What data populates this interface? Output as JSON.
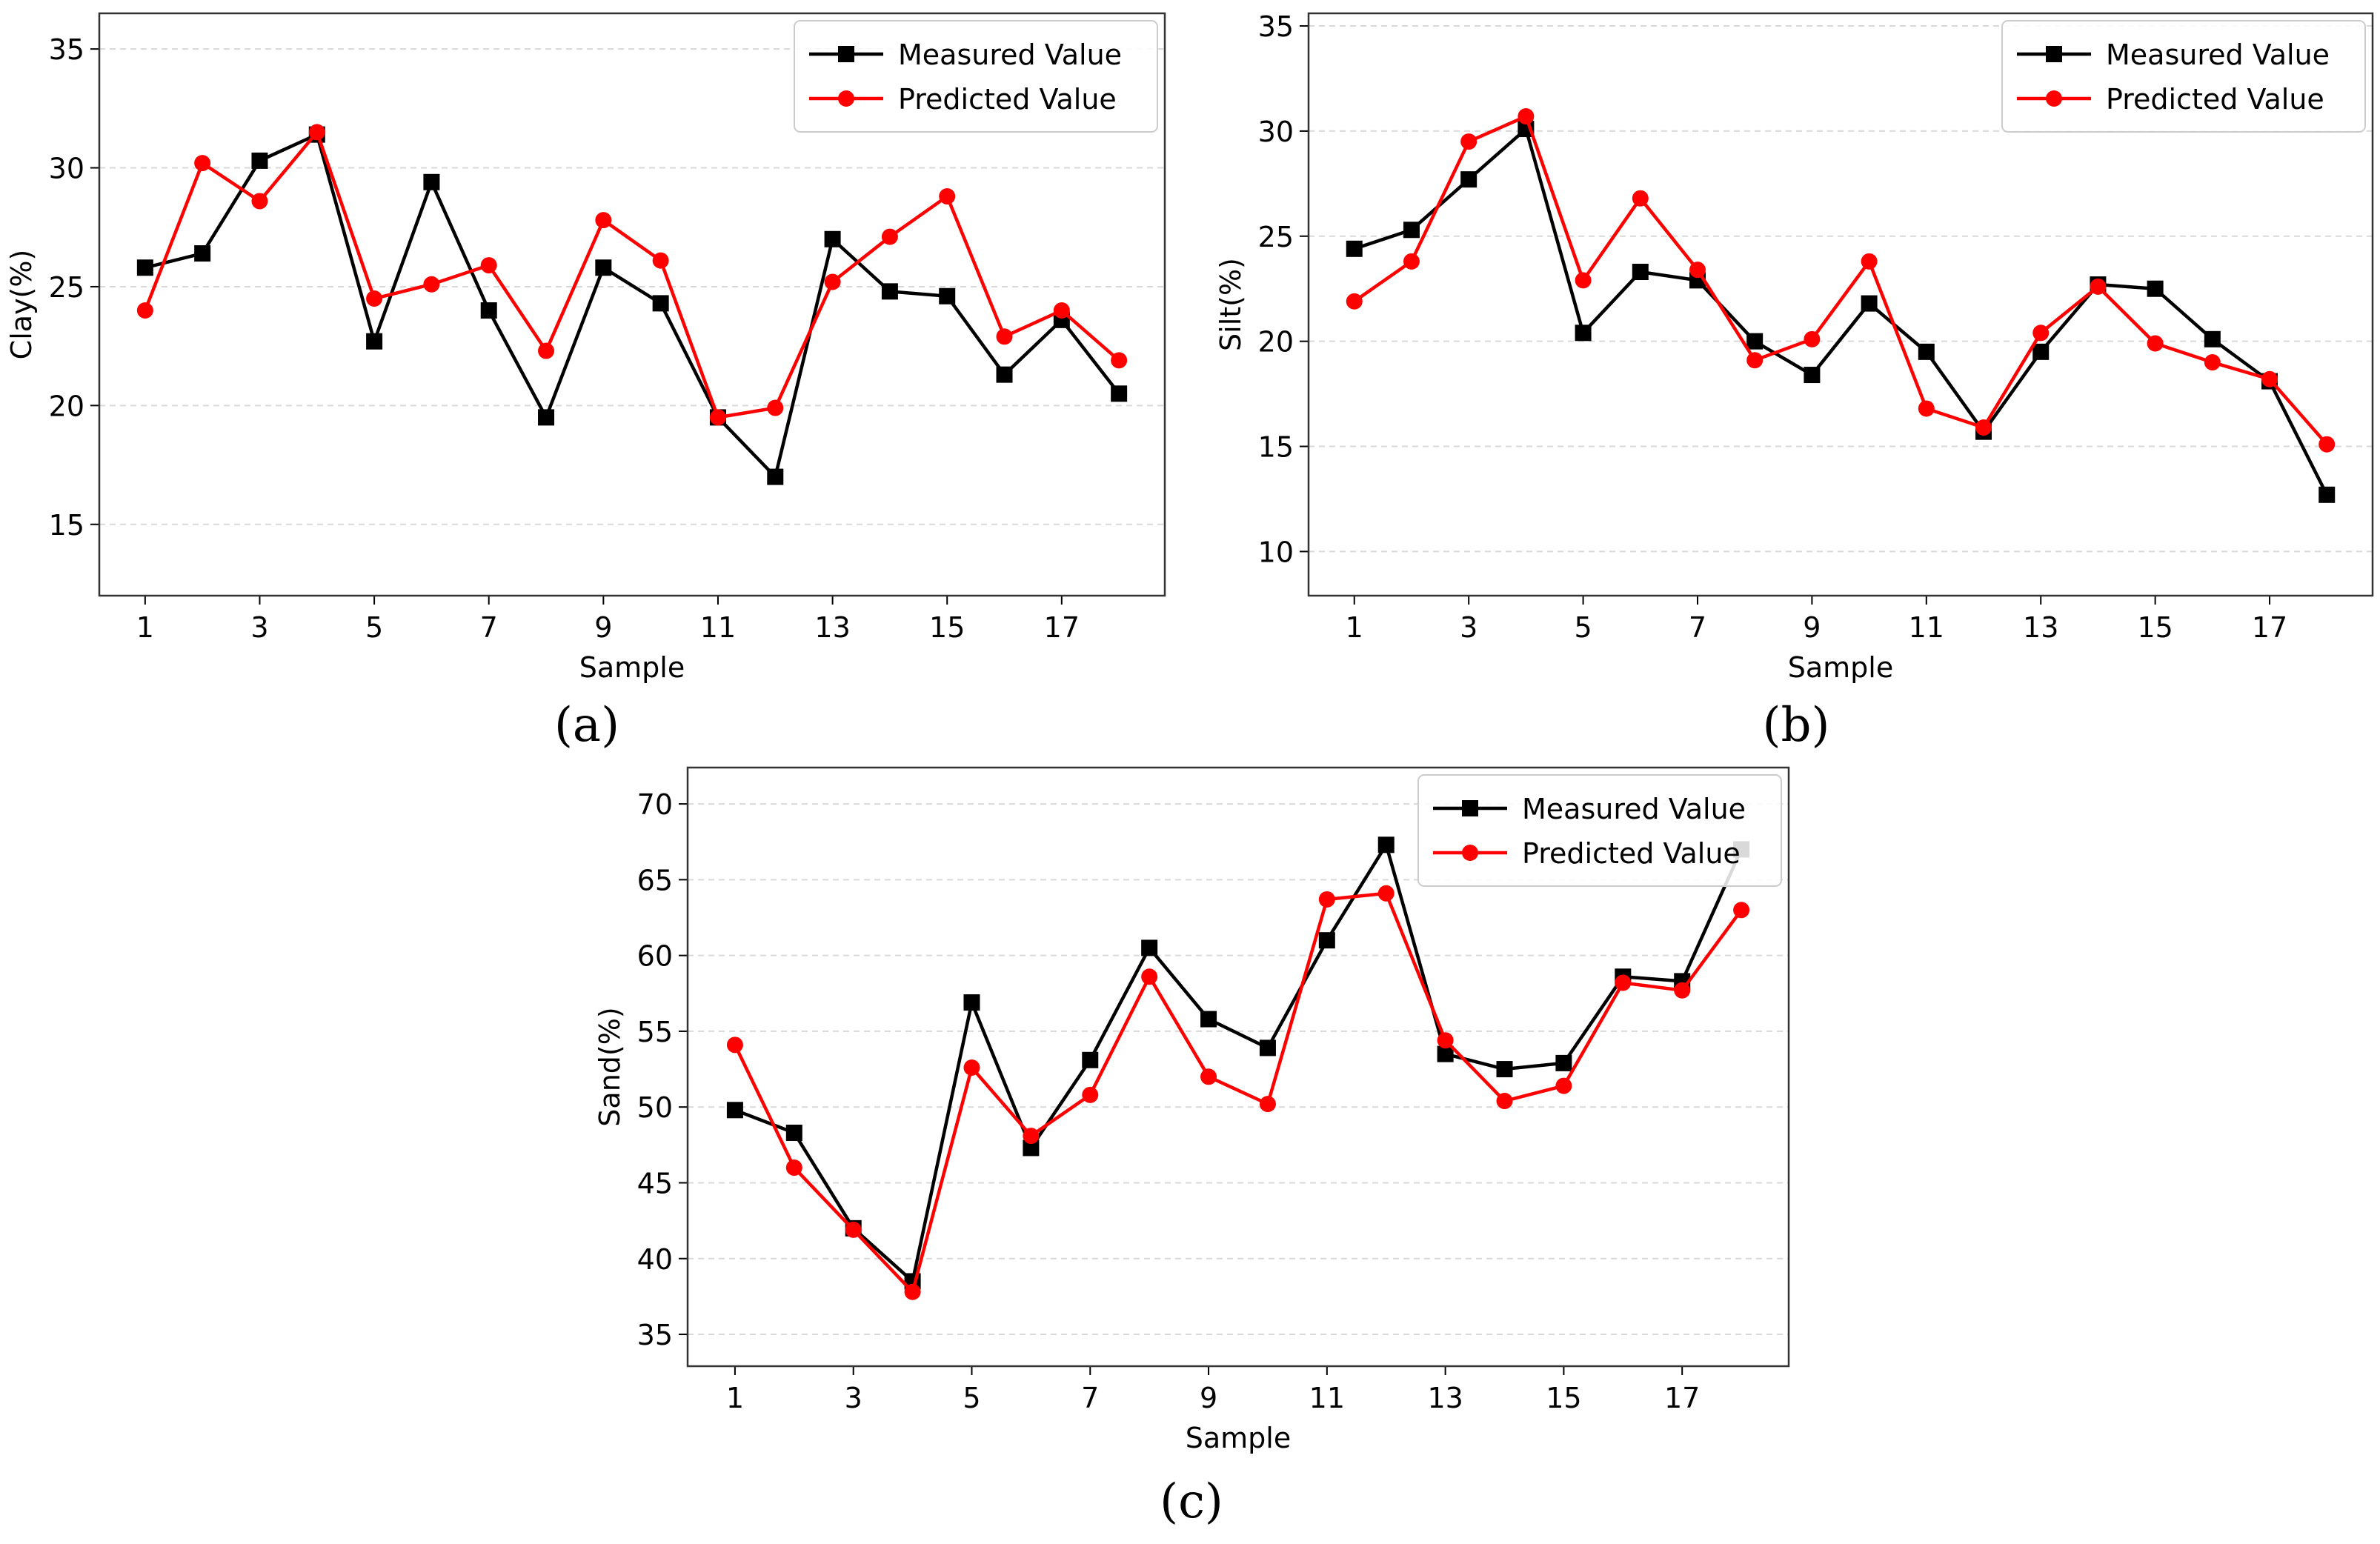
{
  "figure": {
    "panel_labels": [
      "(a)",
      "(b)",
      "(c)"
    ],
    "legend_entries": [
      "Measured Value",
      "Predicted Value"
    ],
    "colors": {
      "measured": "#000000",
      "predicted": "#ff0000",
      "grid": "#d9d9d9",
      "frame": "#333333"
    }
  },
  "chart_data": [
    {
      "type": "line",
      "panel": "(a)",
      "xlabel": "Sample",
      "ylabel": "Clay(%)",
      "xlim": [
        0.2,
        18.8
      ],
      "ylim": [
        12,
        36.5
      ],
      "xticks": [
        1,
        3,
        5,
        7,
        9,
        11,
        13,
        15,
        17
      ],
      "yticks": [
        15,
        20,
        25,
        30,
        35
      ],
      "grid": "y-dashed",
      "legend_position": "top-right",
      "x": [
        1,
        2,
        3,
        4,
        5,
        6,
        7,
        8,
        9,
        10,
        11,
        12,
        13,
        14,
        15,
        16,
        17,
        18
      ],
      "series": [
        {
          "name": "Measured Value",
          "marker": "square",
          "color": "#000000",
          "values": [
            25.8,
            26.4,
            30.3,
            31.4,
            22.7,
            29.4,
            24.0,
            19.5,
            25.8,
            24.3,
            19.5,
            17.0,
            27.0,
            24.8,
            24.6,
            21.3,
            23.6,
            20.5
          ]
        },
        {
          "name": "Predicted Value",
          "marker": "circle",
          "color": "#ff0000",
          "values": [
            24.0,
            30.2,
            28.6,
            31.5,
            24.5,
            25.1,
            25.9,
            22.3,
            27.8,
            26.1,
            19.5,
            19.9,
            25.2,
            27.1,
            28.8,
            22.9,
            24.0,
            21.9
          ]
        }
      ]
    },
    {
      "type": "line",
      "panel": "(b)",
      "xlabel": "Sample",
      "ylabel": "Silt(%)",
      "xlim": [
        0.2,
        18.8
      ],
      "ylim": [
        7.9,
        35.6
      ],
      "xticks": [
        1,
        3,
        5,
        7,
        9,
        11,
        13,
        15,
        17
      ],
      "yticks": [
        10,
        15,
        20,
        25,
        30,
        35
      ],
      "grid": "y-dashed",
      "legend_position": "top-right",
      "x": [
        1,
        2,
        3,
        4,
        5,
        6,
        7,
        8,
        9,
        10,
        11,
        12,
        13,
        14,
        15,
        16,
        17,
        18
      ],
      "series": [
        {
          "name": "Measured Value",
          "marker": "square",
          "color": "#000000",
          "values": [
            24.4,
            25.3,
            27.7,
            30.1,
            20.4,
            23.3,
            22.9,
            20.0,
            18.4,
            21.8,
            19.5,
            15.7,
            19.5,
            22.7,
            22.5,
            20.1,
            18.1,
            12.7
          ]
        },
        {
          "name": "Predicted Value",
          "marker": "circle",
          "color": "#ff0000",
          "values": [
            21.9,
            23.8,
            29.5,
            30.7,
            22.9,
            26.8,
            23.4,
            19.1,
            20.1,
            23.8,
            16.8,
            15.9,
            20.4,
            22.6,
            19.9,
            19.0,
            18.2,
            15.1
          ]
        }
      ]
    },
    {
      "type": "line",
      "panel": "(c)",
      "xlabel": "Sample",
      "ylabel": "Sand(%)",
      "xlim": [
        0.2,
        18.8
      ],
      "ylim": [
        32.9,
        72.4
      ],
      "xticks": [
        1,
        3,
        5,
        7,
        9,
        11,
        13,
        15,
        17
      ],
      "yticks": [
        35,
        40,
        45,
        50,
        55,
        60,
        65,
        70
      ],
      "grid": "y-dashed",
      "legend_position": "top-right",
      "x": [
        1,
        2,
        3,
        4,
        5,
        6,
        7,
        8,
        9,
        10,
        11,
        12,
        13,
        14,
        15,
        16,
        17,
        18
      ],
      "series": [
        {
          "name": "Measured Value",
          "marker": "square",
          "color": "#000000",
          "values": [
            49.8,
            48.3,
            42.0,
            38.5,
            56.9,
            47.3,
            53.1,
            60.5,
            55.8,
            53.9,
            61.0,
            67.3,
            53.5,
            52.5,
            52.9,
            58.6,
            58.3,
            67.0
          ]
        },
        {
          "name": "Predicted Value",
          "marker": "circle",
          "color": "#ff0000",
          "values": [
            54.1,
            46.0,
            41.9,
            37.8,
            52.6,
            48.1,
            50.8,
            58.6,
            52.0,
            50.2,
            63.7,
            64.1,
            54.4,
            50.4,
            51.4,
            58.2,
            57.7,
            63.0
          ]
        }
      ]
    }
  ]
}
